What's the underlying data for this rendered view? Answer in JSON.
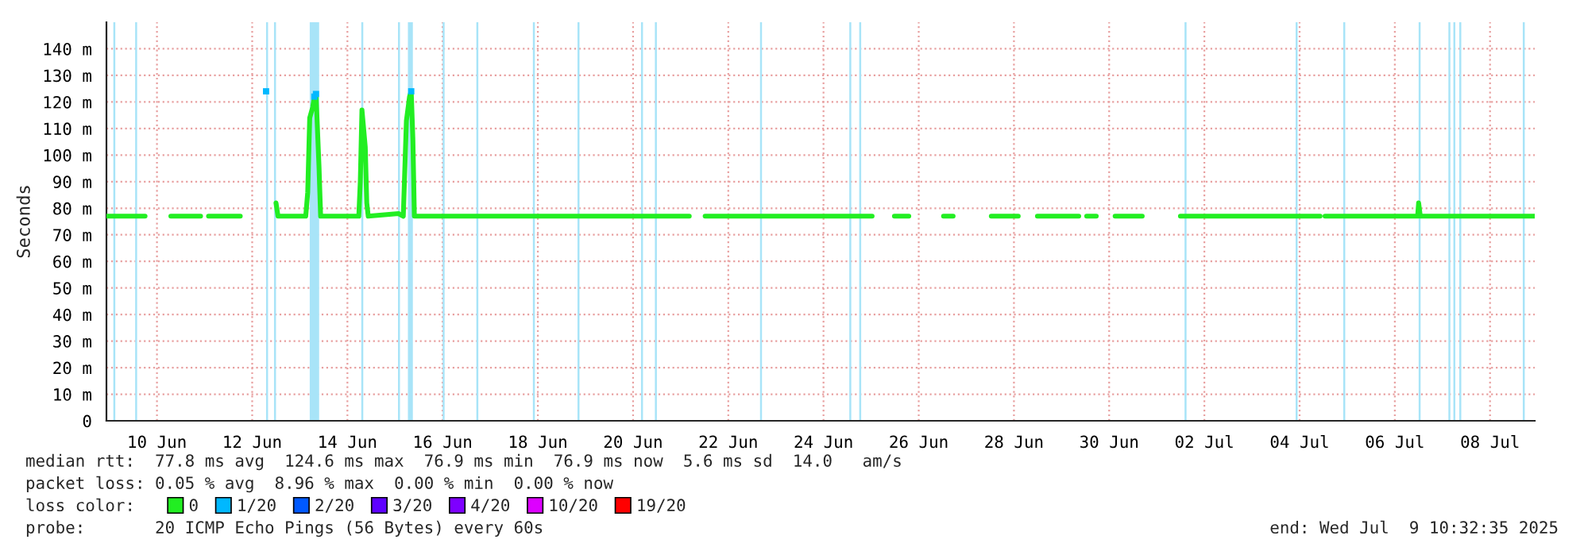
{
  "chart_data": {
    "type": "line",
    "ylabel": "Seconds",
    "legend_title": "loss color:",
    "legend": "bottom",
    "annotations": [
      "median rtt:  77.8 ms avg  124.6 ms max  76.9 ms min  76.9 ms now  5.6 ms sd  14.0   am/s",
      "packet loss: 0.05 % avg  8.96 % max  0.00 % min  0.00 % now",
      "probe:       20 ICMP Echo Pings (56 Bytes) every 60s",
      "end: Wed Jul  9 10:32:35 2025"
    ],
    "xlim": [
      "2025-06-09T10:32",
      "2025-07-09T10:32"
    ],
    "xticks": [
      {
        "value": "2025-06-10T12:00",
        "label": "10 Jun"
      },
      {
        "value": "2025-06-12T12:00",
        "label": "12 Jun"
      },
      {
        "value": "2025-06-14T12:00",
        "label": "14 Jun"
      },
      {
        "value": "2025-06-16T12:00",
        "label": "16 Jun"
      },
      {
        "value": "2025-06-18T12:00",
        "label": "18 Jun"
      },
      {
        "value": "2025-06-20T12:00",
        "label": "20 Jun"
      },
      {
        "value": "2025-06-22T12:00",
        "label": "22 Jun"
      },
      {
        "value": "2025-06-24T12:00",
        "label": "24 Jun"
      },
      {
        "value": "2025-06-26T12:00",
        "label": "26 Jun"
      },
      {
        "value": "2025-06-28T12:00",
        "label": "28 Jun"
      },
      {
        "value": "2025-06-30T12:00",
        "label": "30 Jun"
      },
      {
        "value": "2025-07-02T12:00",
        "label": "02 Jul"
      },
      {
        "value": "2025-07-04T12:00",
        "label": "04 Jul"
      },
      {
        "value": "2025-07-06T12:00",
        "label": "06 Jul"
      },
      {
        "value": "2025-07-08T12:00",
        "label": "08 Jul"
      }
    ],
    "ylim": [
      0,
      150
    ],
    "yticks": [
      0,
      {
        "value": 10,
        "label": "10 m"
      },
      {
        "value": 20,
        "label": "20 m"
      },
      {
        "value": 30,
        "label": "30 m"
      },
      {
        "value": 40,
        "label": "40 m"
      },
      {
        "value": 50,
        "label": "50 m"
      },
      {
        "value": 60,
        "label": "60 m"
      },
      {
        "value": 70,
        "label": "70 m"
      },
      {
        "value": 80,
        "label": "80 m"
      },
      {
        "value": 90,
        "label": "90 m"
      },
      {
        "value": 100,
        "label": "100 m"
      },
      {
        "value": 110,
        "label": "110 m"
      },
      {
        "value": 120,
        "label": "120 m"
      },
      {
        "value": 130,
        "label": "130 m"
      },
      {
        "value": 140,
        "label": "140 m"
      }
    ],
    "grid": true,
    "series": [
      {
        "name": "0",
        "color": "#22ee22",
        "x": [
          "2025-06-09T10:32",
          "2025-06-10T06:00",
          "2025-06-10T07:00",
          "2025-06-10T19:00",
          "2025-06-11T10:00",
          "2025-06-11T11:00",
          "2025-06-11T14:00",
          "2025-06-12T06:00",
          "2025-06-12T07:00",
          "2025-06-12T19:00",
          "2025-06-12T20:00",
          "2025-06-12T21:00",
          "2025-06-13T00:00",
          "2025-06-13T01:00",
          "2025-06-13T15:00",
          "2025-06-13T16:00",
          "2025-06-13T17:00",
          "2025-06-13T18:30",
          "2025-06-13T19:20",
          "2025-06-13T20:10",
          "2025-06-13T21:40",
          "2025-06-13T22:30",
          "2025-06-14T17:45",
          "2025-06-14T18:30",
          "2025-06-14T19:20",
          "2025-06-14T21:00",
          "2025-06-14T21:45",
          "2025-06-14T22:30",
          "2025-06-15T13:45",
          "2025-06-15T16:10",
          "2025-06-15T17:45",
          "2025-06-15T19:20",
          "2025-06-15T20:10",
          "2025-06-15T21:00",
          "2025-06-15T21:45",
          "2025-06-21T16:20",
          "2025-06-21T17:00",
          "2025-06-22T00:20",
          "2025-06-25T12:30",
          "2025-06-25T13:00",
          "2025-06-25T23:45",
          "2025-06-26T07:00",
          "2025-06-26T08:00",
          "2025-06-27T00:30",
          "2025-06-27T05:20",
          "2025-06-27T06:00",
          "2025-06-28T00:35",
          "2025-06-28T14:10",
          "2025-06-28T15:00",
          "2025-06-28T23:50",
          "2025-06-29T20:40",
          "2025-06-29T21:00",
          "2025-06-30T00:40",
          "2025-06-30T05:30",
          "2025-06-30T06:00",
          "2025-06-30T15:00",
          "2025-07-01T04:40",
          "2025-07-01T05:00",
          "2025-07-01T23:55",
          "2025-07-04T22:20",
          "2025-07-04T23:00",
          "2025-07-05T00:50",
          "2025-07-06T23:30",
          "2025-07-07T00:00",
          "2025-07-07T00:50",
          "2025-07-09T10:32"
        ],
        "values": [
          77,
          77,
          null,
          77,
          77,
          null,
          77,
          77,
          null,
          null,
          null,
          null,
          82,
          77,
          77,
          86,
          114,
          118,
          122,
          123,
          96,
          77,
          77,
          90,
          117,
          103,
          82,
          77,
          78,
          77,
          113,
          122,
          124,
          106,
          77,
          77,
          null,
          77,
          77,
          null,
          77,
          77,
          null,
          77,
          77,
          null,
          77,
          77,
          null,
          77,
          77,
          null,
          77,
          77,
          null,
          77,
          77,
          null,
          77,
          77,
          null,
          77,
          77,
          82,
          77,
          77
        ]
      },
      {
        "name": "1/20",
        "color": "#00b8ff",
        "type": "scatter",
        "x": [
          "2025-06-12T19:00",
          "2025-06-13T19:20",
          "2025-06-13T20:10",
          "2025-06-15T20:10"
        ],
        "values": [
          124,
          122,
          123,
          124
        ]
      },
      {
        "name": "2/20",
        "color": "#0059ff",
        "type": "scatter"
      },
      {
        "name": "3/20",
        "color": "#5e00ff",
        "type": "scatter"
      },
      {
        "name": "4/20",
        "color": "#7e00ff",
        "type": "scatter"
      },
      {
        "name": "10/20",
        "color": "#dd00ff",
        "type": "scatter"
      },
      {
        "name": "19/20",
        "color": "#ff0000",
        "type": "scatter"
      }
    ],
    "bands": [
      {
        "axis": "x",
        "from": "2025-06-09T14:00",
        "to": "2025-06-09T15:00",
        "color": "#a8e4f8"
      },
      {
        "axis": "x",
        "from": "2025-06-10T01:00",
        "to": "2025-06-10T02:00",
        "color": "#a8e4f8"
      },
      {
        "axis": "x",
        "from": "2025-06-12T19:00",
        "to": "2025-06-12T20:00",
        "color": "#a8e4f8"
      },
      {
        "axis": "x",
        "from": "2025-06-12T23:00",
        "to": "2025-06-13T00:00",
        "color": "#a8e4f8"
      },
      {
        "axis": "x",
        "from": "2025-06-13T17:00",
        "to": "2025-06-13T21:45",
        "color": "#a8e4f8"
      },
      {
        "axis": "x",
        "from": "2025-06-14T19:00",
        "to": "2025-06-14T20:00",
        "color": "#a8e4f8"
      },
      {
        "axis": "x",
        "from": "2025-06-15T13:30",
        "to": "2025-06-15T14:30",
        "color": "#a8e4f8"
      },
      {
        "axis": "x",
        "from": "2025-06-15T18:30",
        "to": "2025-06-15T21:00",
        "color": "#a8e4f8"
      },
      {
        "axis": "x",
        "from": "2025-06-16T12:00",
        "to": "2025-06-16T13:00",
        "color": "#a8e4f8"
      },
      {
        "axis": "x",
        "from": "2025-06-17T05:00",
        "to": "2025-06-17T06:00",
        "color": "#a8e4f8"
      },
      {
        "axis": "x",
        "from": "2025-06-18T09:30",
        "to": "2025-06-18T10:30",
        "color": "#a8e4f8"
      },
      {
        "axis": "x",
        "from": "2025-06-19T08:00",
        "to": "2025-06-19T09:00",
        "color": "#a8e4f8"
      },
      {
        "axis": "x",
        "from": "2025-06-20T16:00",
        "to": "2025-06-20T17:00",
        "color": "#a8e4f8"
      },
      {
        "axis": "x",
        "from": "2025-06-20T23:00",
        "to": "2025-06-21T00:00",
        "color": "#a8e4f8"
      },
      {
        "axis": "x",
        "from": "2025-06-23T04:00",
        "to": "2025-06-23T05:00",
        "color": "#a8e4f8"
      },
      {
        "axis": "x",
        "from": "2025-06-25T01:00",
        "to": "2025-06-25T02:00",
        "color": "#a8e4f8"
      },
      {
        "axis": "x",
        "from": "2025-06-25T06:00",
        "to": "2025-06-25T07:00",
        "color": "#a8e4f8"
      },
      {
        "axis": "x",
        "from": "2025-07-02T02:00",
        "to": "2025-07-02T03:00",
        "color": "#a8e4f8"
      },
      {
        "axis": "x",
        "from": "2025-07-04T10:00",
        "to": "2025-07-04T11:00",
        "color": "#a8e4f8"
      },
      {
        "axis": "x",
        "from": "2025-07-05T10:00",
        "to": "2025-07-05T11:00",
        "color": "#a8e4f8"
      },
      {
        "axis": "x",
        "from": "2025-07-07T00:00",
        "to": "2025-07-07T01:00",
        "color": "#a8e4f8"
      },
      {
        "axis": "x",
        "from": "2025-07-07T15:00",
        "to": "2025-07-07T16:00",
        "color": "#a8e4f8"
      },
      {
        "axis": "x",
        "from": "2025-07-07T17:30",
        "to": "2025-07-07T18:30",
        "color": "#a8e4f8"
      },
      {
        "axis": "x",
        "from": "2025-07-07T20:30",
        "to": "2025-07-07T21:30",
        "color": "#a8e4f8"
      },
      {
        "axis": "x",
        "from": "2025-07-09T04:30",
        "to": "2025-07-09T05:30",
        "color": "#a8e4f8"
      }
    ]
  }
}
